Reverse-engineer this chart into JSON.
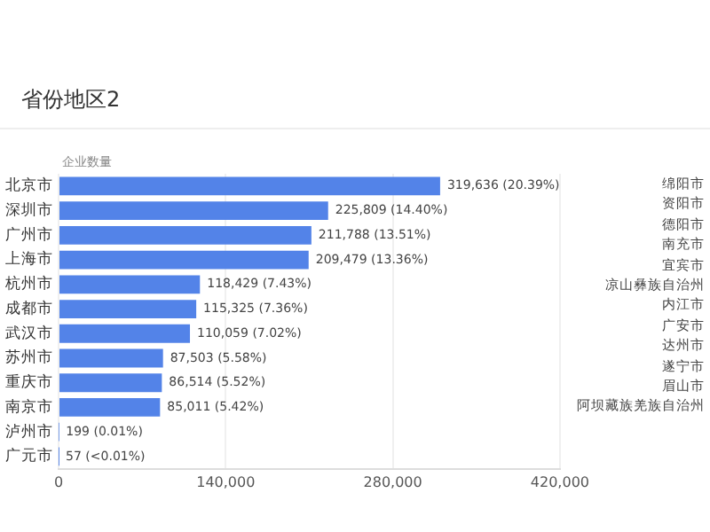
{
  "chart_data": [
    {
      "type": "bar",
      "orientation": "horizontal",
      "title": "省份地区2",
      "ylabel": "企业数量",
      "color": "#5383e8",
      "grid": "x",
      "categories": [
        "北京市",
        "深圳市",
        "广州市",
        "上海市",
        "杭州市",
        "成都市",
        "武汉市",
        "苏州市",
        "重庆市",
        "南京市",
        "泸州市",
        "广元市"
      ],
      "values": [
        319636,
        225809,
        211788,
        209479,
        118429,
        115325,
        110059,
        87503,
        86514,
        85011,
        199,
        57
      ],
      "value_labels": [
        "319,636 (20.39%)",
        "225,809 (14.40%)",
        "211,788 (13.51%)",
        "209,479 (13.36%)",
        "118,429 (7.43%)",
        "115,325 (7.36%)",
        "110,059 (7.02%)",
        "87,503 (5.58%)",
        "86,514 (5.52%)",
        "85,011 (5.42%)",
        "199 (0.01%)",
        "57 (<0.01%)"
      ],
      "xlim": [
        0,
        420000
      ],
      "xticks": [
        0,
        {
          "value": 140000,
          "label": "140,000"
        },
        {
          "value": 280000,
          "label": "280,000"
        },
        {
          "value": 420000,
          "label": "420,000"
        }
      ]
    },
    {
      "type": "other",
      "annotations": [
        "绵阳市",
        "资阳市",
        "德阳市",
        "南充市",
        "宜宾市",
        "凉山彝族自治州",
        "内江市",
        "广安市",
        "达州市",
        "遂宁市",
        "眉山市",
        "阿坝藏族羌族自治州"
      ]
    }
  ]
}
